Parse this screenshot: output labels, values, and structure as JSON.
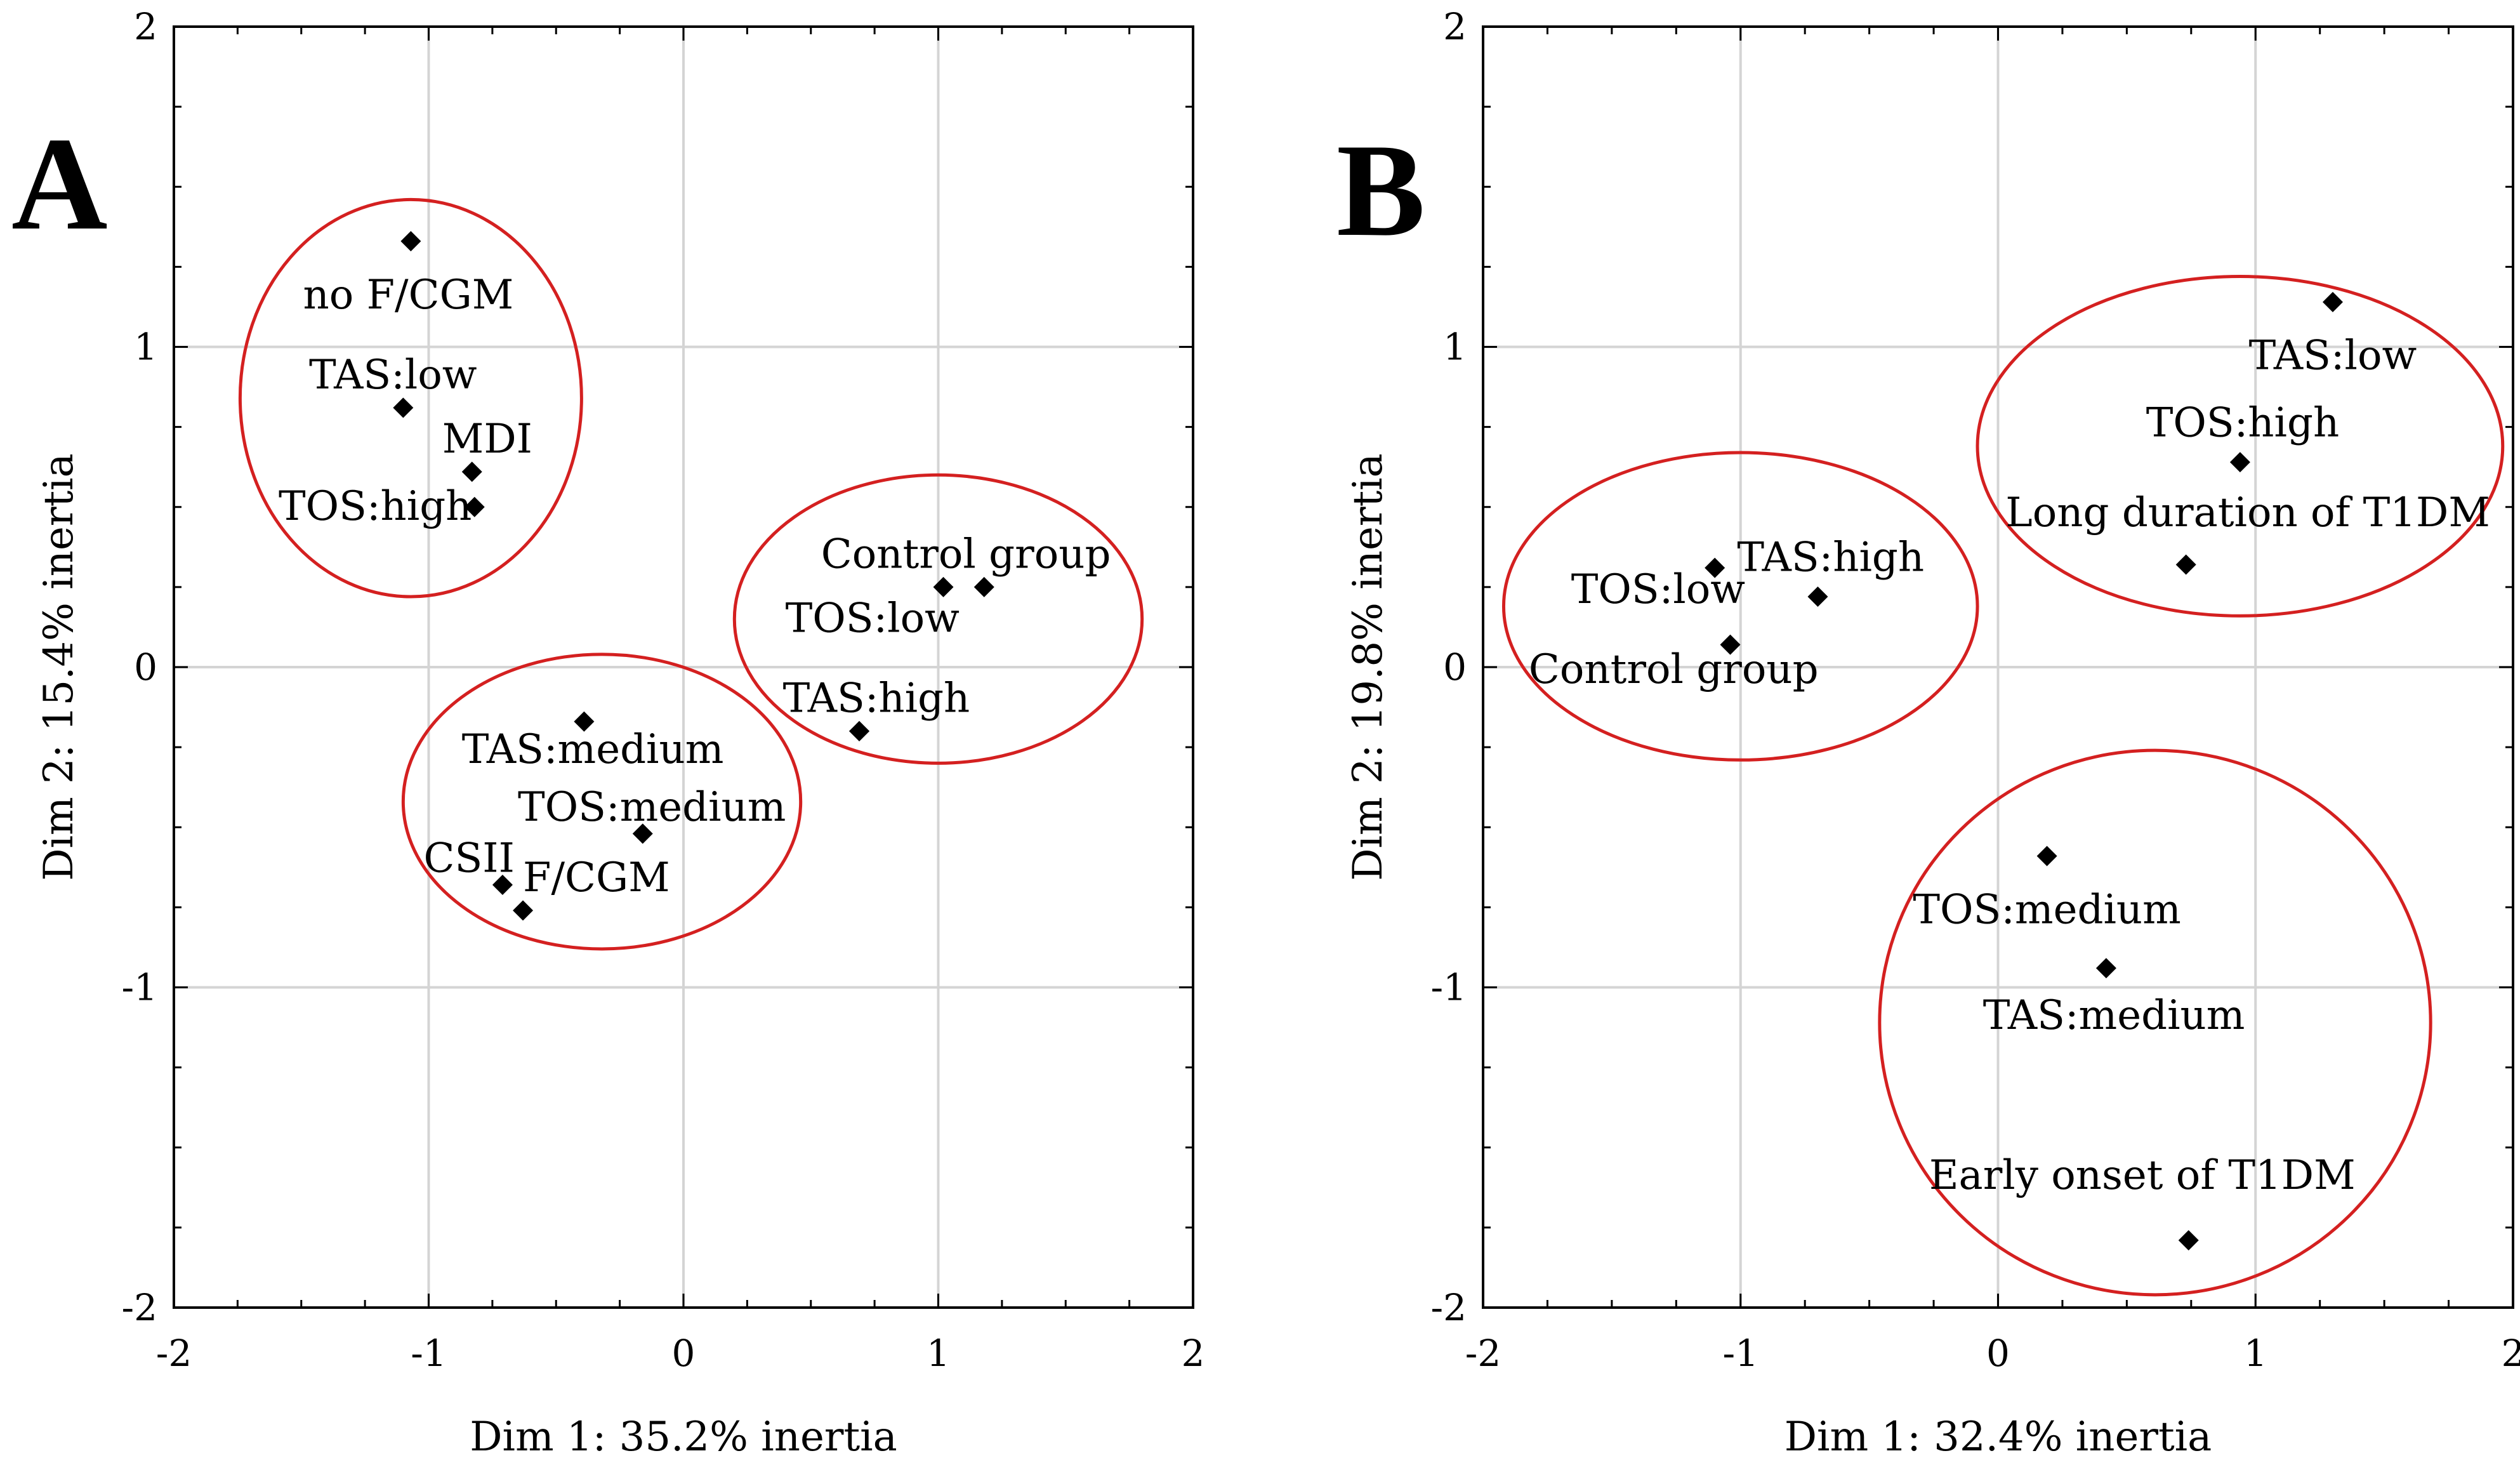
{
  "chart_data": [
    {
      "type": "scatter",
      "panel_label": "A",
      "xlabel": "Dim 1: 35.2% inertia",
      "ylabel": "Dim 2: 15.4% inertia",
      "xlim": [
        -2,
        2
      ],
      "ylim": [
        -2,
        2
      ],
      "xticks": [
        -2,
        -1,
        0,
        1,
        2
      ],
      "yticks": [
        -2,
        -1,
        0,
        1,
        2
      ],
      "xtick_labels": [
        "-2",
        "-1",
        "0",
        "1",
        "2"
      ],
      "ytick_labels": [
        "-2",
        "-1",
        "0",
        "1",
        "2"
      ],
      "grid": true,
      "points": [
        {
          "label": "no F/CGM",
          "x": -1.07,
          "y": 1.33,
          "lx": -1.08,
          "ly": 1.16,
          "anchor": "middle"
        },
        {
          "label": "TAS:low",
          "x": -1.1,
          "y": 0.81,
          "lx": -1.14,
          "ly": 0.91,
          "anchor": "middle"
        },
        {
          "label": "MDI",
          "x": -0.83,
          "y": 0.61,
          "lx": -0.77,
          "ly": 0.71,
          "anchor": "middle"
        },
        {
          "label": "TOS:high",
          "x": -0.82,
          "y": 0.5,
          "lx": -1.21,
          "ly": 0.5,
          "anchor": "middle"
        },
        {
          "label": "Control group",
          "x": 1.02,
          "y": 0.25,
          "lx": 0.54,
          "ly": 0.35,
          "anchor": "start"
        },
        {
          "label": "",
          "x": 1.18,
          "y": 0.25
        },
        {
          "label": "TOS:low",
          "x": 0.69,
          "y": -0.2,
          "lx": 0.4,
          "ly": 0.15,
          "anchor": "start"
        },
        {
          "label": "TAS:high",
          "x": 0.69,
          "y": -0.2,
          "lx": 0.39,
          "ly": -0.1,
          "anchor": "start"
        },
        {
          "label": "TAS:medium",
          "x": -0.39,
          "y": -0.17,
          "lx": -0.87,
          "ly": -0.26,
          "anchor": "start"
        },
        {
          "label": "TOS:medium",
          "x": -0.16,
          "y": -0.52,
          "lx": -0.65,
          "ly": -0.44,
          "anchor": "start"
        },
        {
          "label": "CSII",
          "x": -0.71,
          "y": -0.68,
          "lx": -1.02,
          "ly": -0.6,
          "anchor": "start"
        },
        {
          "label": "F/CGM",
          "x": -0.63,
          "y": -0.76,
          "lx": -0.63,
          "ly": -0.66,
          "anchor": "start"
        }
      ],
      "ellipses": [
        {
          "cx": -1.07,
          "cy": 0.84,
          "rx": 0.67,
          "ry": 0.62
        },
        {
          "cx": 1.0,
          "cy": 0.15,
          "rx": 0.8,
          "ry": 0.45
        },
        {
          "cx": -0.32,
          "cy": -0.42,
          "rx": 0.78,
          "ry": 0.46
        }
      ]
    },
    {
      "type": "scatter",
      "panel_label": "B",
      "xlabel": "Dim 1: 32.4% inertia",
      "ylabel": "Dim 2: 19.8% inertia",
      "xlim": [
        -2,
        2
      ],
      "ylim": [
        -2,
        2
      ],
      "xticks": [
        -2,
        -1,
        0,
        1,
        2
      ],
      "yticks": [
        -2,
        -1,
        0,
        1,
        2
      ],
      "xtick_labels": [
        "-2",
        "-1",
        "0",
        "1",
        "2"
      ],
      "ytick_labels": [
        "-2",
        "-1",
        "0",
        "1",
        "2"
      ],
      "grid": true,
      "points": [
        {
          "label": "TAS:low",
          "x": 1.3,
          "y": 1.14,
          "lx": 1.3,
          "ly": 0.97,
          "anchor": "middle"
        },
        {
          "label": "TOS:high",
          "x": 0.94,
          "y": 0.64,
          "lx": 0.95,
          "ly": 0.76,
          "anchor": "middle"
        },
        {
          "label": "Long duration of T1DM",
          "x": 0.73,
          "y": 0.32,
          "lx": 0.97,
          "ly": 0.48,
          "anchor": "middle"
        },
        {
          "label": "TOS:low",
          "x": -1.1,
          "y": 0.31,
          "lx": -1.32,
          "ly": 0.24,
          "anchor": "middle"
        },
        {
          "label": "TAS:high",
          "x": -0.7,
          "y": 0.22,
          "lx": -0.65,
          "ly": 0.34,
          "anchor": "middle"
        },
        {
          "label": "Control group",
          "x": -1.04,
          "y": 0.07,
          "lx": -1.26,
          "ly": -0.01,
          "anchor": "middle"
        },
        {
          "label": "TOS:medium",
          "x": 0.19,
          "y": -0.59,
          "lx": 0.19,
          "ly": -0.76,
          "anchor": "middle"
        },
        {
          "label": "TAS:medium",
          "x": 0.42,
          "y": -0.94,
          "lx": 0.45,
          "ly": -1.09,
          "anchor": "middle"
        },
        {
          "label": "Early onset of T1DM",
          "x": 0.74,
          "y": -1.79,
          "lx": 0.56,
          "ly": -1.59,
          "anchor": "middle"
        }
      ],
      "ellipses": [
        {
          "cx": 0.94,
          "cy": 0.69,
          "rx": 1.02,
          "ry": 0.53
        },
        {
          "cx": -1.0,
          "cy": 0.19,
          "rx": 0.92,
          "ry": 0.48
        },
        {
          "cx": 0.61,
          "cy": -1.11,
          "rx": 1.07,
          "ry": 0.85
        }
      ]
    }
  ]
}
